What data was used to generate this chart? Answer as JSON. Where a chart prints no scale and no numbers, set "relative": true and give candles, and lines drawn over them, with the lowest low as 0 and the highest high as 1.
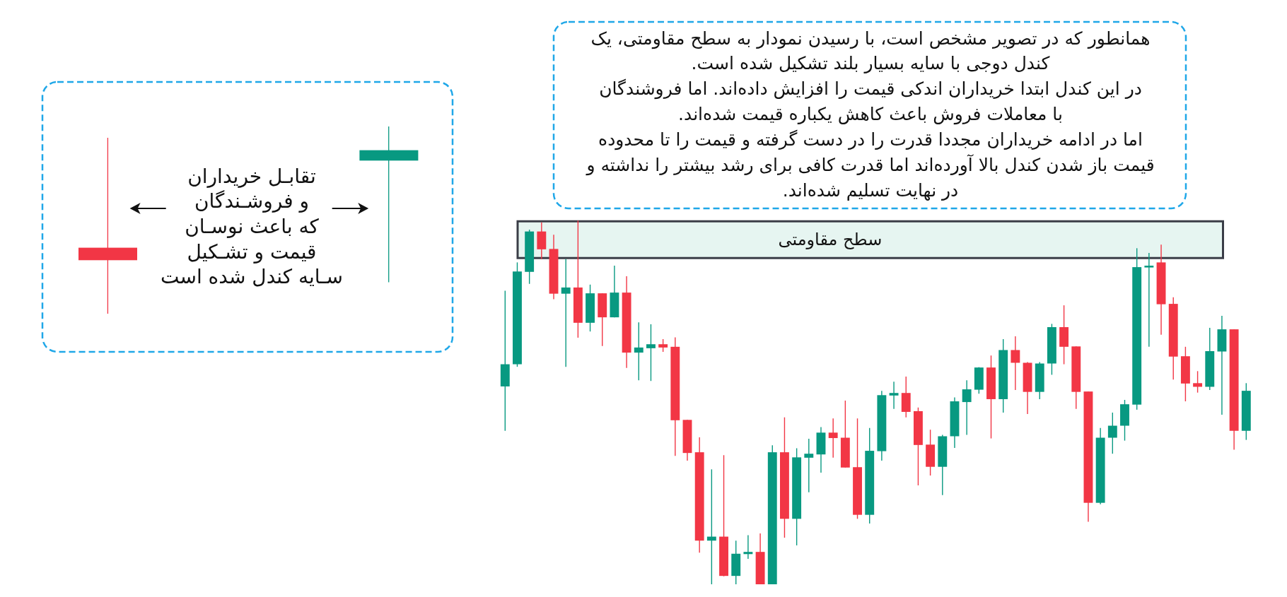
{
  "chart_data": {
    "type": "candlestick",
    "relative": true,
    "categories": [
      null,
      null,
      null,
      null,
      null,
      null,
      null,
      null,
      null,
      null,
      null,
      null,
      null,
      null,
      null,
      null,
      null,
      null,
      null,
      null,
      null,
      null,
      null,
      null,
      null,
      null,
      null,
      null,
      null,
      null,
      null,
      null,
      null,
      null,
      null,
      null,
      null,
      null,
      null,
      null,
      null,
      null,
      null,
      null,
      null,
      null,
      null,
      null,
      null,
      null,
      null,
      null,
      null,
      null,
      null,
      null,
      null,
      null,
      null,
      null,
      null,
      null
    ],
    "ohlc": [
      [
        0.544,
        0.807,
        0.422,
        0.605
      ],
      [
        0.605,
        0.885,
        0.598,
        0.86
      ],
      [
        0.859,
        0.975,
        0.826,
        0.97
      ],
      [
        0.97,
        0.995,
        0.894,
        0.921
      ],
      [
        0.922,
        0.961,
        0.784,
        0.799
      ],
      [
        0.799,
        0.894,
        0.598,
        0.816
      ],
      [
        0.816,
        1,
        0.678,
        0.719
      ],
      [
        0.719,
        0.824,
        0.695,
        0.8
      ],
      [
        0.8,
        0.8,
        0.655,
        0.734
      ],
      [
        0.734,
        0.876,
        0.734,
        0.802
      ],
      [
        0.802,
        0.847,
        0.595,
        0.637
      ],
      [
        0.637,
        0.72,
        0.561,
        0.651
      ],
      [
        0.649,
        0.715,
        0.559,
        0.66
      ],
      [
        0.66,
        0.674,
        0.639,
        0.651
      ],
      [
        0.653,
        0.679,
        0.353,
        0.451
      ],
      [
        0.452,
        0.452,
        0.34,
        0.361
      ],
      [
        0.363,
        0.404,
        0.087,
        0.12
      ],
      [
        0.12,
        0.316,
        0,
        0.131
      ],
      [
        0.131,
        0.355,
        0.022,
        0.023
      ],
      [
        0.023,
        0.12,
        0,
        0.084
      ],
      [
        0.083,
        0.135,
        0.07,
        0.089
      ],
      [
        0.089,
        0.14,
        0,
        0
      ],
      [
        0,
        0.382,
        0,
        0.363
      ],
      [
        0.363,
        0.459,
        0.128,
        0.18
      ],
      [
        0.18,
        0.374,
        0.107,
        0.349
      ],
      [
        0.348,
        0.4,
        0.253,
        0.359
      ],
      [
        0.357,
        0.432,
        0.307,
        0.417
      ],
      [
        0.417,
        0.456,
        0.348,
        0.402
      ],
      [
        0.403,
        0.505,
        0.321,
        0.321
      ],
      [
        0.322,
        0.456,
        0.18,
        0.191
      ],
      [
        0.191,
        0.43,
        0.167,
        0.367
      ],
      [
        0.366,
        0.532,
        0.34,
        0.52
      ],
      [
        0.519,
        0.557,
        0.482,
        0.526
      ],
      [
        0.526,
        0.571,
        0.459,
        0.474
      ],
      [
        0.476,
        0.486,
        0.272,
        0.383
      ],
      [
        0.384,
        0.425,
        0.299,
        0.323
      ],
      [
        0.323,
        0.411,
        0.245,
        0.407
      ],
      [
        0.407,
        0.514,
        0.375,
        0.503
      ],
      [
        0.501,
        0.561,
        0.411,
        0.536
      ],
      [
        0.535,
        0.597,
        0.524,
        0.596
      ],
      [
        0.596,
        0.629,
        0.401,
        0.509
      ],
      [
        0.509,
        0.674,
        0.472,
        0.644
      ],
      [
        0.644,
        0.682,
        0.534,
        0.609
      ],
      [
        0.609,
        0.611,
        0.468,
        0.529
      ],
      [
        0.529,
        0.611,
        0.509,
        0.607
      ],
      [
        0.607,
        0.716,
        0.576,
        0.707
      ],
      [
        0.707,
        0.767,
        0.605,
        0.653
      ],
      [
        0.654,
        0.654,
        0.482,
        0.529
      ],
      [
        0.53,
        0.53,
        0.172,
        0.224
      ],
      [
        0.224,
        0.43,
        0.22,
        0.403
      ],
      [
        0.403,
        0.472,
        0.359,
        0.436
      ],
      [
        0.436,
        0.507,
        0.395,
        0.495
      ],
      [
        0.494,
        0.924,
        0.48,
        0.872
      ],
      [
        0.871,
        0.911,
        0.653,
        0.876
      ],
      [
        0.885,
        0.934,
        0.686,
        0.77
      ],
      [
        0.771,
        0.789,
        0.563,
        0.626
      ],
      [
        0.627,
        0.653,
        0.503,
        0.552
      ],
      [
        0.553,
        0.586,
        0.527,
        0.543
      ],
      [
        0.543,
        0.705,
        0.534,
        0.641
      ],
      [
        0.64,
        0.738,
        0.466,
        0.701
      ],
      [
        0.701,
        0.701,
        0.37,
        0.422
      ],
      [
        0.422,
        0.553,
        0.397,
        0.532
      ]
    ],
    "colors": [
      "#089981",
      "#089981",
      "#089981",
      "#f23645",
      "#f23645",
      "#089981",
      "#f23645",
      "#089981",
      "#f23645",
      "#089981",
      "#f23645",
      "#089981",
      "#089981",
      "#f23645",
      "#f23645",
      "#f23645",
      "#f23645",
      "#089981",
      "#f23645",
      "#089981",
      "#089981",
      "#f23645",
      "#089981",
      "#f23645",
      "#089981",
      "#089981",
      "#089981",
      "#f23645",
      "#f23645",
      "#f23645",
      "#089981",
      "#089981",
      "#089981",
      "#f23645",
      "#f23645",
      "#f23645",
      "#089981",
      "#089981",
      "#089981",
      "#089981",
      "#f23645",
      "#089981",
      "#f23645",
      "#f23645",
      "#089981",
      "#089981",
      "#f23645",
      "#f23645",
      "#f23645",
      "#089981",
      "#089981",
      "#089981",
      "#089981",
      "#089981",
      "#f23645",
      "#f23645",
      "#f23645",
      "#f23645",
      "#089981",
      "#089981",
      "#f23645",
      "#089981"
    ],
    "bands": [
      {
        "axis": "y",
        "from": 0.897,
        "to": 0.998,
        "label": "سطح مقاومتی",
        "color": "#e6f5f1"
      }
    ],
    "annotations": [
      "همانطور که در تصویر مشخص است، با رسیدن نمودار به سطح مقاومتی، یک\nکندل دوجی با سایه بسیار بلند تشکیل شده است.\nدر این کندل ابتدا خریداران اندکی قیمت را افزایش داده‌اند. اما فروشندگان\nبا معاملات فروش باعث کاهش یکباره قیمت شده‌اند.\nاما در ادامه خریداران مجددا قدرت را در دست گرفته و قیمت را تا محدوده\nقیمت باز شدن کندل بالا آورده‌اند اما قدرت کافی برای رشد بیشتر را نداشته و\nدر نهایت تسلیم شده‌اند.",
      "تقابـل خریداران\nو فروشـندگان\nکه باعث نوسـان\nقیمت و تشـکیل\nسـایه کندل شده است"
    ]
  }
}
